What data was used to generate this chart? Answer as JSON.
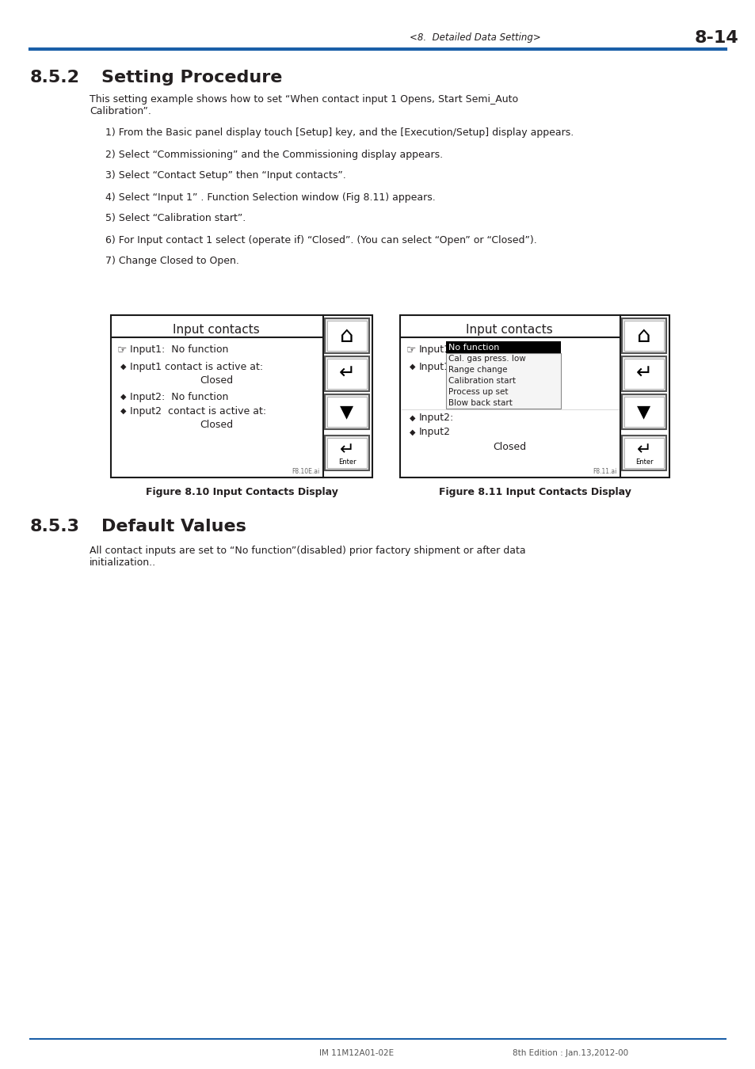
{
  "page_header_left": "<8.  Detailed Data Setting>",
  "page_header_right": "8-14",
  "header_line_color": "#1a5fa8",
  "section_title_852_num": "8.5.2",
  "section_title_852_text": "Setting Procedure",
  "section_title_853_num": "8.5.3",
  "section_title_853_text": "Default Values",
  "para_852_line1": "This setting example shows how to set “When contact input 1 Opens, Start Semi_Auto",
  "para_852_line2": "Calibration”.",
  "steps_852": [
    "1) From the Basic panel display touch [Setup] key, and the [Execution/Setup] display appears.",
    "2) Select “Commissioning” and the Commissioning display appears.",
    "3) Select “Contact Setup” then “Input contacts”.",
    "4) Select “Input 1” . Function Selection window (Fig 8.11) appears.",
    "5) Select “Calibration start”.",
    "6) For Input contact 1 select (operate if) “Closed”. (You can select “Open” or “Closed”).",
    "7) Change Closed to Open."
  ],
  "para_853_line1": "All contact inputs are set to “No function”(disabled) prior factory shipment or after data",
  "para_853_line2": "initialization..",
  "fig810_caption": "Figure 8.10 Input Contacts Display",
  "fig811_caption": "Figure 8.11 Input Contacts Display",
  "fig810_file": "F8.10E.ai",
  "fig811_file": "F8.11.ai",
  "footer_left": "IM 11M12A01-02E",
  "footer_right": "8th Edition : Jan.13,2012-00",
  "bg_color": "#ffffff",
  "text_color": "#231f20",
  "blue_color": "#1a5fa8",
  "dropdown_items": [
    "Cal. gas press. low",
    "Range change",
    "Calibration start",
    "Process up set",
    "Blow back start"
  ]
}
